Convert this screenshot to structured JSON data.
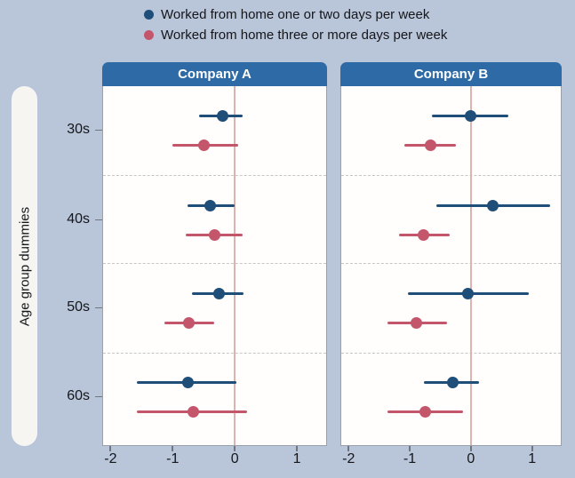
{
  "chart_data": {
    "type": "scatter",
    "variant": "coefficient-plot-with-95ci-error-bars",
    "title": "",
    "y_axis_label": "Age group dummies",
    "categories": [
      "30s",
      "40s",
      "50s",
      "60s"
    ],
    "x_tick_labels": [
      "-2",
      "-1",
      "0",
      "1"
    ],
    "x_tick_values": [
      -2,
      -1,
      0,
      1
    ],
    "x_range": [
      -2.12,
      1.47
    ],
    "reference_line_x": 0,
    "grid": "dashed horizontal separators between age groups",
    "legend_position": "top",
    "legend": [
      {
        "label": "Worked from home one or two days per week",
        "color": "#1f4e79"
      },
      {
        "label": "Worked from home three or more days per week",
        "color": "#c4566c"
      }
    ],
    "panels": [
      {
        "title": "Company A",
        "series": [
          {
            "name": "Worked from home one or two days per week",
            "color": "#1f4e79",
            "points": [
              {
                "category": "30s",
                "estimate": -0.2,
                "ci_low": -0.57,
                "ci_high": 0.13
              },
              {
                "category": "40s",
                "estimate": -0.4,
                "ci_low": -0.76,
                "ci_high": 0.0
              },
              {
                "category": "50s",
                "estimate": -0.26,
                "ci_low": -0.69,
                "ci_high": 0.14
              },
              {
                "category": "60s",
                "estimate": -0.76,
                "ci_low": -1.57,
                "ci_high": 0.03
              }
            ]
          },
          {
            "name": "Worked from home three or more days per week",
            "color": "#c4566c",
            "points": [
              {
                "category": "30s",
                "estimate": -0.49,
                "ci_low": -1.0,
                "ci_high": 0.05
              },
              {
                "category": "40s",
                "estimate": -0.33,
                "ci_low": -0.79,
                "ci_high": 0.13
              },
              {
                "category": "50s",
                "estimate": -0.74,
                "ci_low": -1.14,
                "ci_high": -0.33
              },
              {
                "category": "60s",
                "estimate": -0.67,
                "ci_low": -1.57,
                "ci_high": 0.2
              }
            ]
          }
        ]
      },
      {
        "title": "Company B",
        "series": [
          {
            "name": "Worked from home one or two days per week",
            "color": "#1f4e79",
            "points": [
              {
                "category": "30s",
                "estimate": 0.0,
                "ci_low": -0.64,
                "ci_high": 0.61
              },
              {
                "category": "40s",
                "estimate": 0.36,
                "ci_low": -0.57,
                "ci_high": 1.3
              },
              {
                "category": "50s",
                "estimate": -0.05,
                "ci_low": -1.03,
                "ci_high": 0.94
              },
              {
                "category": "60s",
                "estimate": -0.29,
                "ci_low": -0.77,
                "ci_high": 0.14
              }
            ]
          },
          {
            "name": "Worked from home three or more days per week",
            "color": "#c4566c",
            "points": [
              {
                "category": "30s",
                "estimate": -0.66,
                "ci_low": -1.09,
                "ci_high": -0.24
              },
              {
                "category": "40s",
                "estimate": -0.77,
                "ci_low": -1.17,
                "ci_high": -0.34
              },
              {
                "category": "50s",
                "estimate": -0.89,
                "ci_low": -1.36,
                "ci_high": -0.39
              },
              {
                "category": "60s",
                "estimate": -0.74,
                "ci_low": -1.37,
                "ci_high": -0.13
              }
            ]
          }
        ]
      }
    ],
    "colors": {
      "background": "#b9c5d9",
      "panel_header": "#2e6ba6",
      "panel_background": "#fffefd",
      "reference_line": "#dcb3ae",
      "separator_dashed": "#c6c6c6",
      "series_blue": "#1f4e79",
      "series_red": "#c4566c",
      "y_label_pill": "#f6f5f1",
      "text": "#14161a"
    }
  }
}
